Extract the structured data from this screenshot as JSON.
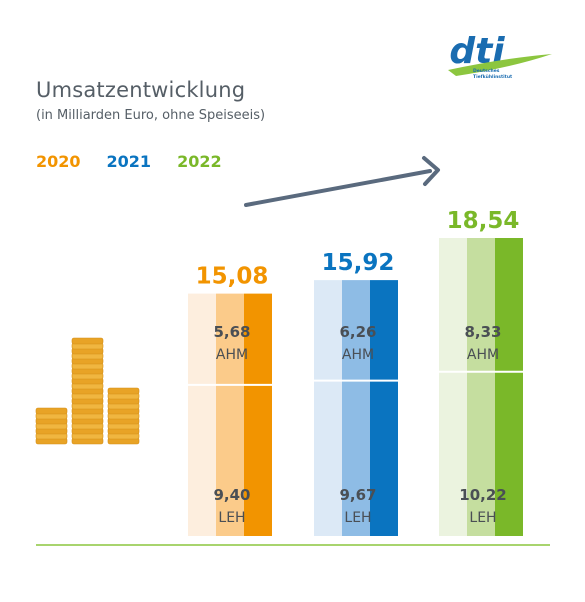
{
  "logo": {
    "mark": "dti",
    "line1": "Deutsches",
    "line2": "Tiefkühlinstitut",
    "colors": {
      "blue": "#1a6cb0",
      "green": "#8cc63f"
    }
  },
  "header": {
    "title": "Umsatzentwicklung",
    "subtitle": "(in Milliarden Euro, ohne Speiseeis)"
  },
  "legend": [
    {
      "label": "2020",
      "color": "#f29400"
    },
    {
      "label": "2021",
      "color": "#0a74c0"
    },
    {
      "label": "2022",
      "color": "#7ab829"
    }
  ],
  "decoration": {
    "coins_icon": "coin-stacks-icon",
    "trend_arrow": "trend-arrow-icon",
    "arrow_color": "#5a6a7e",
    "baseline_color": "#8cc63f"
  },
  "chart_data": {
    "type": "bar",
    "title": "Umsatzentwicklung",
    "subtitle": "(in Milliarden Euro, ohne Speiseeis)",
    "categories": [
      "2020",
      "2021",
      "2022"
    ],
    "totals": [
      "15,08",
      "15,92",
      "18,54"
    ],
    "total_values": [
      15.08,
      15.92,
      18.54
    ],
    "series": [
      {
        "name": "AHM",
        "values": [
          5.68,
          6.26,
          8.33
        ],
        "labels": [
          "5,68",
          "6,26",
          "8,33"
        ]
      },
      {
        "name": "LEH",
        "values": [
          9.4,
          9.67,
          10.22
        ],
        "labels": [
          "9,40",
          "9,67",
          "10,22"
        ]
      }
    ],
    "colors": [
      {
        "light": "#fdeede",
        "mid": "#fbcb8a",
        "dark": "#f29400"
      },
      {
        "light": "#dce9f6",
        "mid": "#8ebce5",
        "dark": "#0a74c0"
      },
      {
        "light": "#ebf3df",
        "mid": "#c5de9f",
        "dark": "#7ab829"
      }
    ],
    "stacked": true
  }
}
